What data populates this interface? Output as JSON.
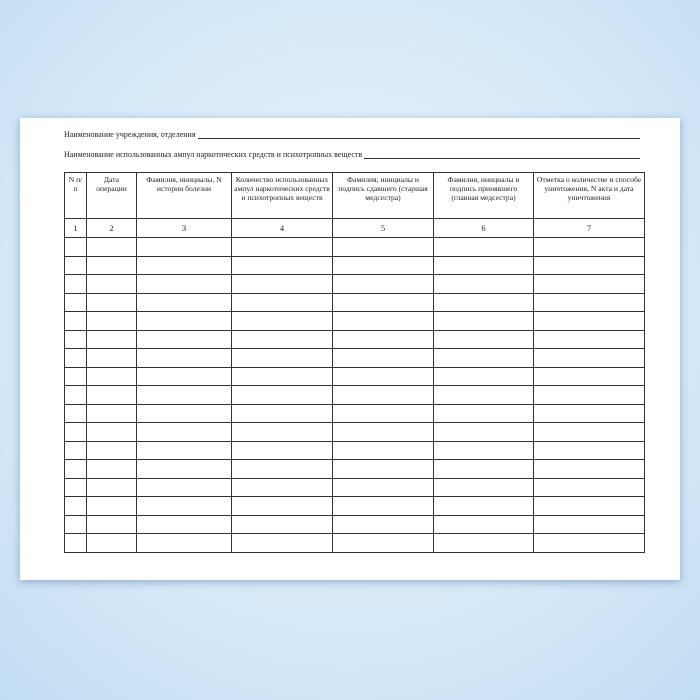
{
  "form": {
    "institution_label": "Наименование учреждения, отделения",
    "substances_label": "Наименование использованных ампул наркотических средств и психотропных веществ",
    "columns": [
      {
        "header": "N п/п",
        "number": "1"
      },
      {
        "header": "Дата операции",
        "number": "2"
      },
      {
        "header": "Фамилия, инициалы, N истории болезни",
        "number": "3"
      },
      {
        "header": "Количество использованных ампул наркотических средств и психотропных веществ",
        "number": "4"
      },
      {
        "header": "Фамилия, инициалы и подпись сдавшего (старшая медсестра)",
        "number": "5"
      },
      {
        "header": "Фамилия, инициалы и подпись принявшего (главная медсестра)",
        "number": "6"
      },
      {
        "header": "Отметка о количестве и способе уничтожения, N акта и дата уничтожения",
        "number": "7"
      }
    ],
    "empty_rows": 17
  }
}
